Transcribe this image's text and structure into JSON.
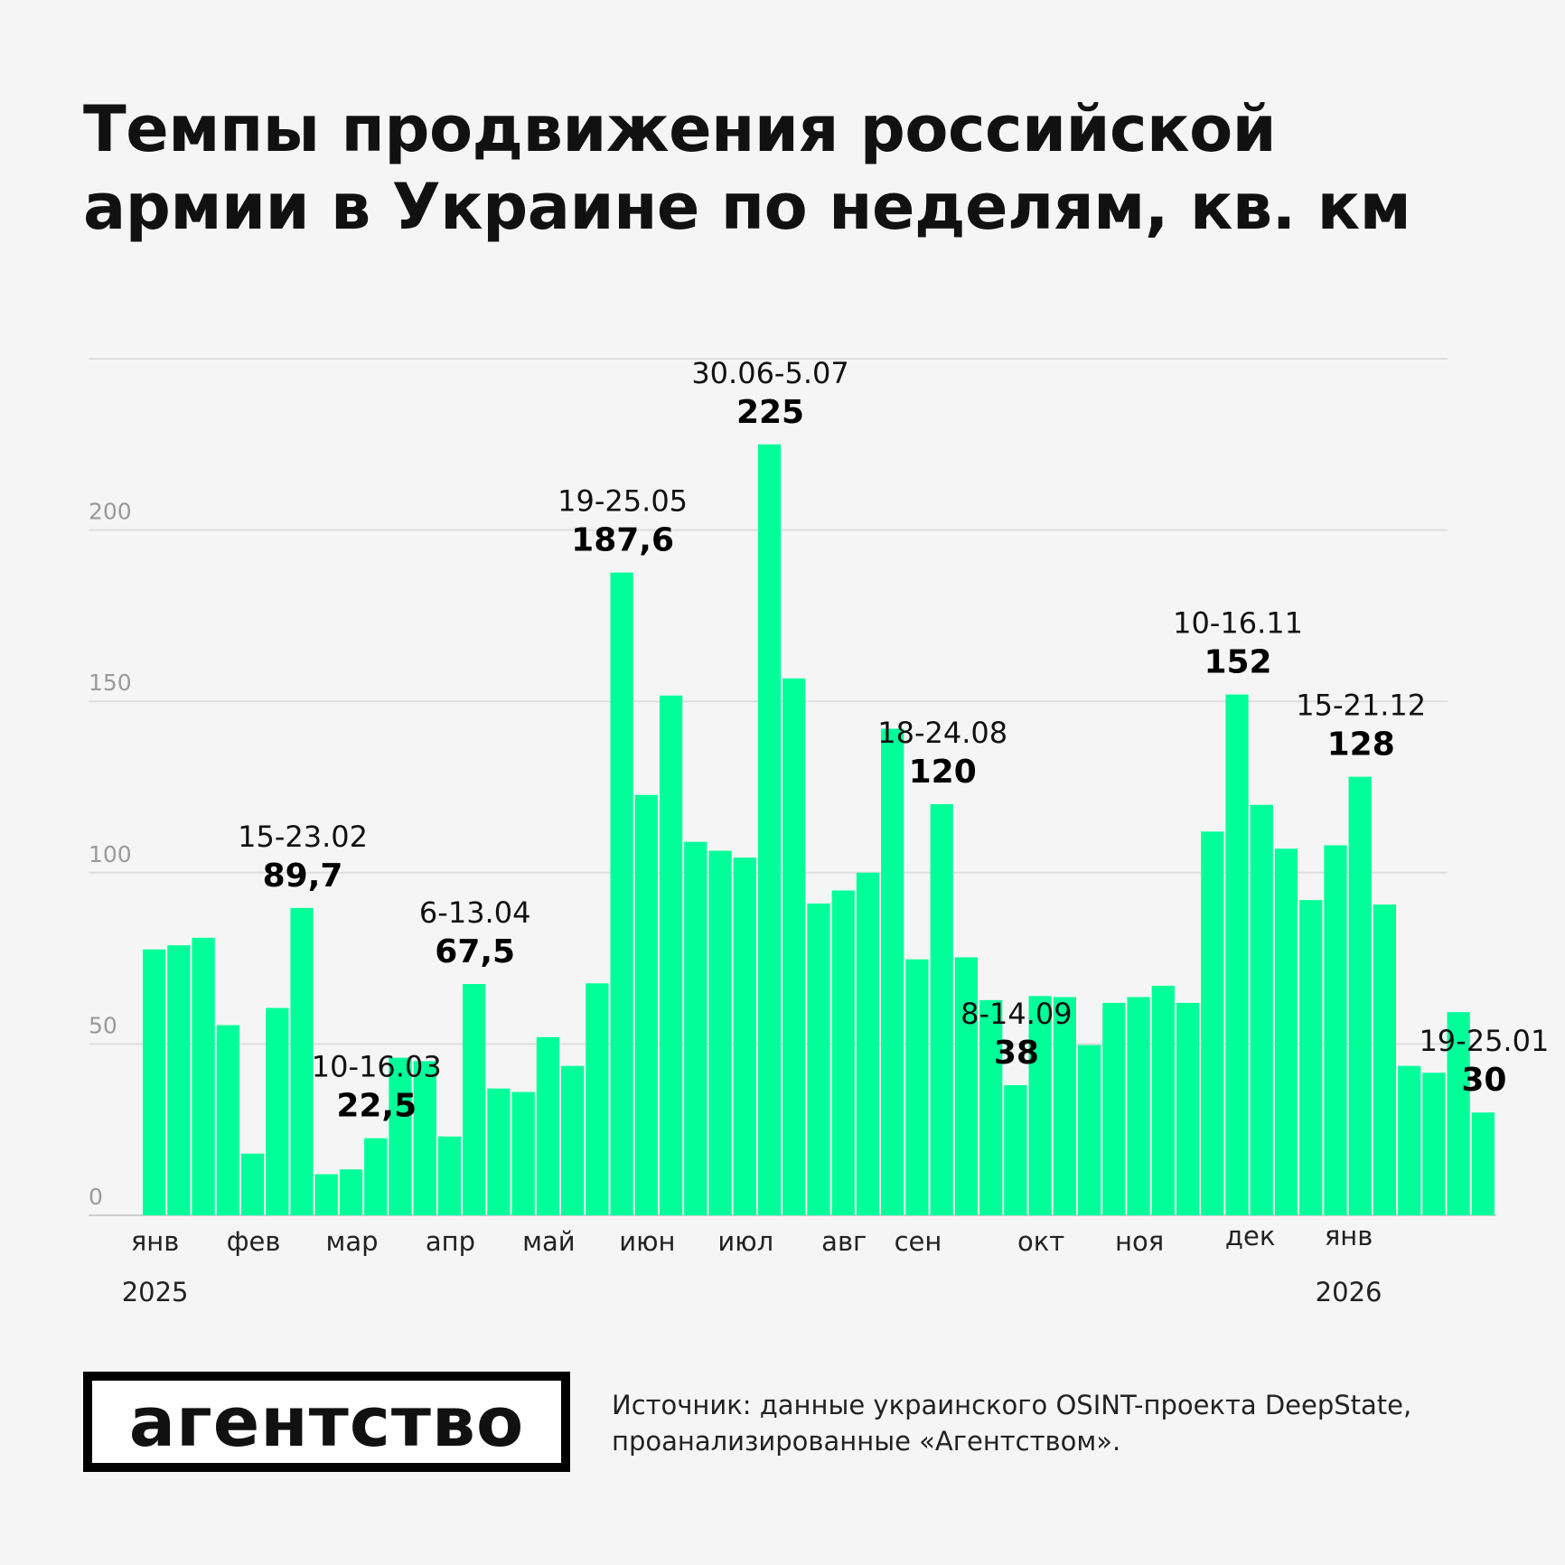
{
  "title": "Темпы продвижения российской армии в Украине по неделям, кв. км",
  "chart_data": {
    "type": "bar",
    "title": "Темпы продвижения российской армии в Украине по неделям, кв. км",
    "ylim": [
      0,
      250
    ],
    "yticks": [
      "0",
      "50",
      "100",
      "150",
      "200"
    ],
    "grid": true,
    "bar_color": "#00ff99",
    "values": [
      77.6,
      78.8,
      81,
      55.5,
      18,
      60.5,
      89.7,
      12,
      13.4,
      22.5,
      46,
      45,
      23,
      67.5,
      37,
      36,
      52,
      43.6,
      67.7,
      187.6,
      122.7,
      151.7,
      109,
      106.4,
      104.4,
      225,
      156.7,
      91,
      94.8,
      100,
      142,
      74.7,
      120,
      75.3,
      62.8,
      38,
      64,
      63.7,
      49.7,
      62,
      63.7,
      67,
      62,
      112,
      152,
      119.8,
      107,
      92,
      108,
      128,
      90.7,
      43.6,
      41.6,
      59.3,
      30
    ],
    "months": [
      {
        "label": "янв",
        "bar": 0
      },
      {
        "label": "фев",
        "bar": 4
      },
      {
        "label": "мар",
        "bar": 8
      },
      {
        "label": "апр",
        "bar": 12
      },
      {
        "label": "май",
        "bar": 16
      },
      {
        "label": "июн",
        "bar": 20
      },
      {
        "label": "июл",
        "bar": 24
      },
      {
        "label": "авг",
        "bar": 28
      },
      {
        "label": "сен",
        "bar": 31
      },
      {
        "label": "окт",
        "bar": 36
      },
      {
        "label": "ноя",
        "bar": 40
      },
      {
        "label": "дек",
        "bar": 44.5
      },
      {
        "label": "янв",
        "bar": 48.5
      }
    ],
    "years": [
      {
        "label": "2025",
        "bar": 0
      },
      {
        "label": "2026",
        "bar": 48.5
      }
    ],
    "annotations": [
      {
        "bar": 6,
        "date": "15-23.02",
        "value": "89,7"
      },
      {
        "bar": 9,
        "date": "10-16.03",
        "value": "22,5"
      },
      {
        "bar": 13,
        "date": "6-13.04",
        "value": "67,5"
      },
      {
        "bar": 19,
        "date": "19-25.05",
        "value": "187,6"
      },
      {
        "bar": 25,
        "date": "30.06-5.07",
        "value": "225"
      },
      {
        "bar": 32,
        "date": "18-24.08",
        "value": "120"
      },
      {
        "bar": 35,
        "date": "8-14.09",
        "value": "38"
      },
      {
        "bar": 44,
        "date": "10-16.11",
        "value": "152"
      },
      {
        "bar": 49,
        "date": "15-21.12",
        "value": "128"
      },
      {
        "bar": 54,
        "date": "19-25.01",
        "value": "30"
      }
    ]
  },
  "logo": "агентство",
  "source": {
    "line1": "Источник: данные украинского OSINT-проекта DeepState,",
    "line2": "проанализированные «Агентством»."
  }
}
